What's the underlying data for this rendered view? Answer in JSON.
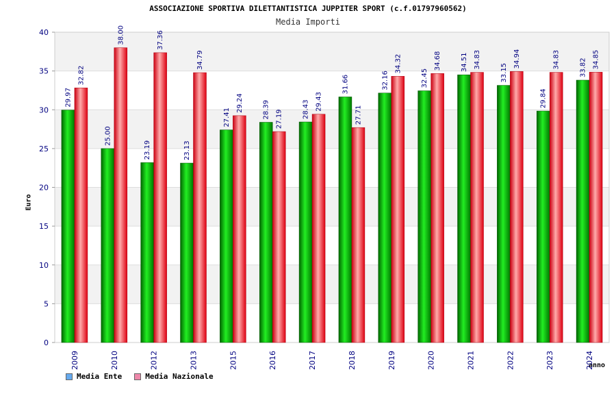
{
  "chart_data": {
    "type": "bar",
    "title": "ASSOCIAZIONE SPORTIVA DILETTANTISTICA JUPPITER SPORT (c.f.01797960562)",
    "subtitle": "Media Importi",
    "xlabel": "anno",
    "ylabel": "Euro",
    "ylim": [
      0,
      40
    ],
    "yticks": [
      0,
      5,
      10,
      15,
      20,
      25,
      30,
      35,
      40
    ],
    "categories": [
      "2009",
      "2010",
      "2012",
      "2013",
      "2015",
      "2016",
      "2017",
      "2018",
      "2019",
      "2020",
      "2021",
      "2022",
      "2023",
      "2024"
    ],
    "series": [
      {
        "name": "Media Ente",
        "color": "#00aa00",
        "values": [
          29.97,
          25.0,
          23.19,
          23.13,
          27.41,
          28.39,
          28.43,
          31.66,
          32.16,
          32.45,
          34.51,
          33.15,
          29.84,
          33.82
        ],
        "labels": [
          "29.97",
          "25.00",
          "23.19",
          "23.13",
          "27.41",
          "28.39",
          "28.43",
          "31.66",
          "32.16",
          "32.45",
          "34.51",
          "33.15",
          "29.84",
          "33.82"
        ]
      },
      {
        "name": "Media Nazionale",
        "color": "#ee1122",
        "values": [
          32.82,
          38.0,
          37.36,
          34.79,
          29.24,
          27.19,
          29.43,
          27.71,
          34.32,
          34.68,
          34.83,
          34.94,
          34.83,
          34.85
        ],
        "labels": [
          "32.82",
          "38.00",
          "37.36",
          "34.79",
          "29.24",
          "27.19",
          "29.43",
          "27.71",
          "34.32",
          "34.68",
          "34.83",
          "34.94",
          "34.83",
          "34.85"
        ]
      }
    ],
    "legend": {
      "position": "bottom-left",
      "items": [
        {
          "label": "Media Ente",
          "swatch_color": "#66aaee"
        },
        {
          "label": "Media Nazionale",
          "swatch_color": "#ee88aa"
        }
      ]
    },
    "colors": {
      "tick_label": "#000080",
      "data_label": "#000080",
      "band_alt": "#f2f2f2",
      "grid": "#dddddd"
    }
  }
}
